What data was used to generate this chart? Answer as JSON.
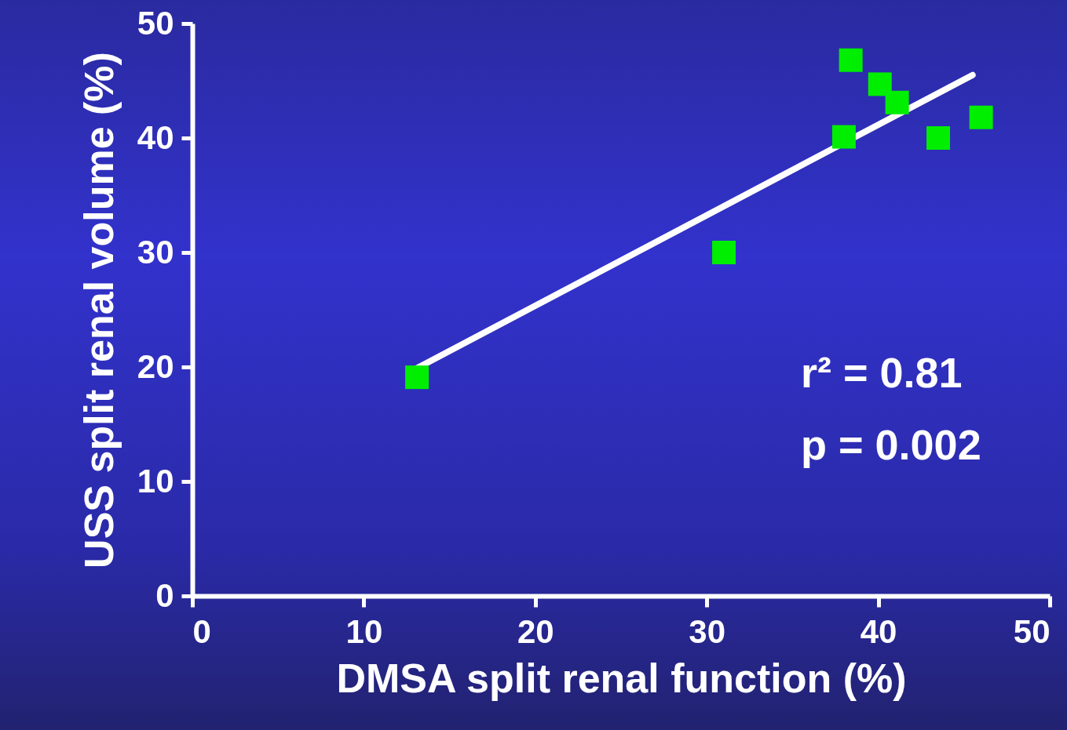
{
  "chart_data": {
    "type": "scatter",
    "xlabel": "DMSA split renal function (%)",
    "ylabel": "USS split renal volume (%)",
    "xlim": [
      0,
      50
    ],
    "xticks": [
      0,
      10,
      20,
      30,
      40,
      50
    ],
    "ylim": [
      0,
      50
    ],
    "yticks": [
      0,
      10,
      20,
      30,
      40,
      50
    ],
    "grid": false,
    "series": [
      {
        "marker": "square",
        "color": "#00ee00",
        "x": [
          13.1,
          31.0,
          38.0,
          38.4,
          40.1,
          41.1,
          43.5,
          46.0
        ],
        "values": [
          19.1,
          30.0,
          40.1,
          46.8,
          44.7,
          43.1,
          40.0,
          41.8
        ]
      },
      {
        "type": "line",
        "marker": "none",
        "color": "#ffffff",
        "x": [
          13.1,
          45.5
        ],
        "values": [
          19.9,
          45.5
        ]
      }
    ],
    "annotations": [
      "r² = 0.81",
      "p = 0.002"
    ]
  }
}
